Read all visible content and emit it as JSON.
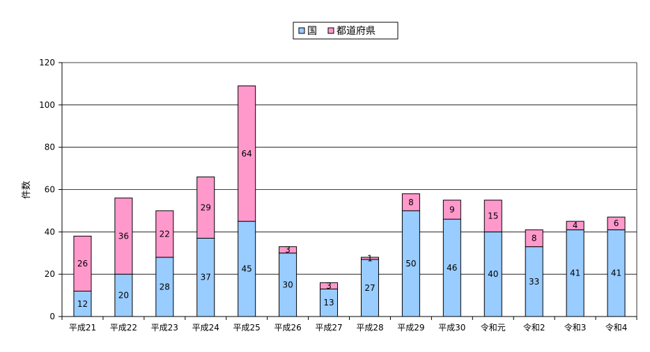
{
  "chart_data": {
    "type": "bar",
    "stacked": true,
    "title": "",
    "xlabel": "",
    "ylabel": "件数",
    "ylim": [
      0,
      120
    ],
    "yticks": [
      0,
      20,
      40,
      60,
      80,
      100,
      120
    ],
    "grid": true,
    "legend_position": "top-center",
    "categories": [
      "平成21",
      "平成22",
      "平成23",
      "平成24",
      "平成25",
      "平成26",
      "平成27",
      "平成28",
      "平成29",
      "平成30",
      "令和元",
      "令和2",
      "令和3",
      "令和4"
    ],
    "series": [
      {
        "name": "国",
        "color": "#99ccff",
        "values": [
          12,
          20,
          28,
          37,
          45,
          30,
          13,
          27,
          50,
          46,
          40,
          33,
          41,
          41
        ]
      },
      {
        "name": "都道府県",
        "color": "#ff99cc",
        "values": [
          26,
          36,
          22,
          29,
          64,
          3,
          3,
          1,
          8,
          9,
          15,
          8,
          4,
          6
        ]
      }
    ]
  }
}
